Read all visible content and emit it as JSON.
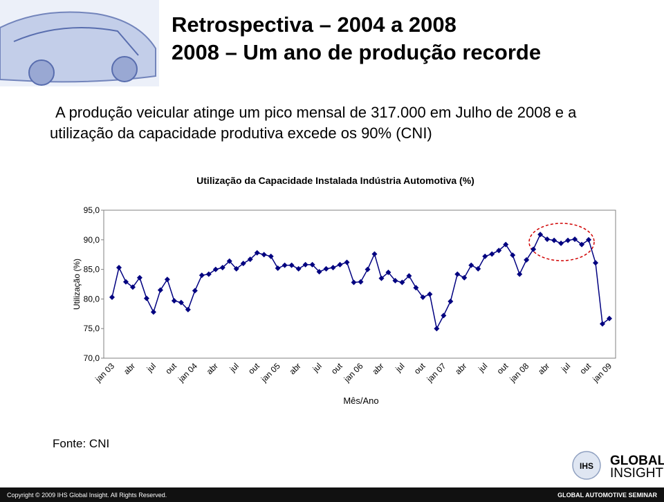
{
  "header": {
    "title_line1": "Retrospectiva – 2004 a 2008",
    "title_line2": "2008 – Um ano de produção recorde"
  },
  "intro": {
    "line1": "A produção veicular atinge um pico mensal de 317.000 em Julho de 2008 e a",
    "line2": "utilização da capacidade produtiva excede os 90% (CNI)"
  },
  "chart_data": {
    "type": "line",
    "title": "Utilização da Capacidade Instalada Indústria Automotiva (%)",
    "y_label": "Utilização (%)",
    "x_label": "Mês/Ano",
    "categories": [
      "jan 03",
      null,
      null,
      "abr",
      null,
      null,
      "jul",
      null,
      null,
      "out",
      null,
      null,
      "jan 04",
      null,
      null,
      "abr",
      null,
      null,
      "jul",
      null,
      null,
      "out",
      null,
      null,
      "jan 05",
      null,
      null,
      "abr",
      null,
      null,
      "jul",
      null,
      null,
      "out",
      null,
      null,
      "jan 06",
      null,
      null,
      "abr",
      null,
      null,
      "jul",
      null,
      null,
      "out",
      null,
      null,
      "jan 07",
      null,
      null,
      "abr",
      null,
      null,
      "jul",
      null,
      null,
      "out",
      null,
      null,
      "jan 08",
      null,
      null,
      "abr",
      null,
      null,
      "jul",
      null,
      null,
      "out",
      null,
      null,
      "jan 09"
    ],
    "values": [
      80.3,
      85.3,
      82.9,
      82.0,
      83.6,
      80.1,
      77.8,
      81.5,
      83.3,
      79.7,
      79.4,
      78.2,
      81.4,
      84.0,
      84.2,
      85.0,
      85.3,
      86.4,
      85.1,
      86.0,
      86.7,
      87.8,
      87.5,
      87.2,
      85.2,
      85.7,
      85.7,
      85.1,
      85.8,
      85.8,
      84.6,
      85.1,
      85.3,
      85.8,
      86.2,
      82.8,
      82.9,
      85.0,
      87.6,
      83.5,
      84.5,
      83.1,
      82.8,
      83.9,
      81.9,
      80.3,
      80.8,
      75.0,
      77.2,
      79.6,
      84.2,
      83.6,
      85.7,
      85.1,
      87.2,
      87.6,
      88.2,
      89.2,
      87.4,
      84.2,
      86.6,
      88.4,
      90.9,
      90.1,
      89.9,
      89.4,
      89.9,
      90.1,
      89.2,
      90.0,
      86.1,
      75.8,
      76.7
    ],
    "color": "#000080",
    "ylim": [
      70,
      95
    ],
    "yticks": [
      {
        "value": 70,
        "label": "70,0"
      },
      {
        "value": 75,
        "label": "75,0"
      },
      {
        "value": 80,
        "label": "80,0"
      },
      {
        "value": 85,
        "label": "85,0"
      },
      {
        "value": 90,
        "label": "90,0"
      },
      {
        "value": 95,
        "label": "95,0"
      }
    ],
    "grid": false
  },
  "source": "Fonte: CNI",
  "logo": {
    "mark": "IHS",
    "line1": "GLOBAL",
    "line2": "INSIGHT"
  },
  "footer": {
    "copyright": "Copyright © 2009 IHS Global Insight. All Rights Reserved.",
    "event": "GLOBAL AUTOMOTIVE SEMINAR"
  }
}
